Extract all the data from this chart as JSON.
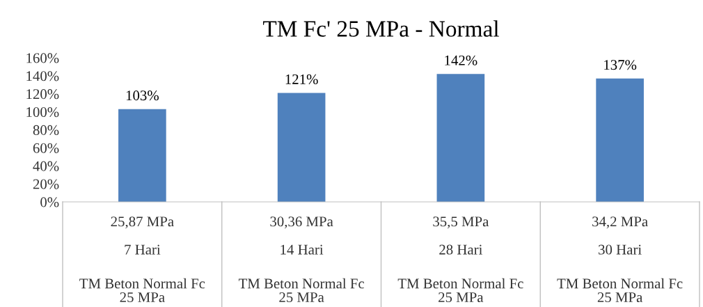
{
  "chart_data": {
    "type": "bar",
    "title": "TM Fc' 25 MPa - Normal",
    "categories": [
      "25,87 MPa\n7 Hari\nTM Beton Normal Fc\n25 MPa",
      "30,36 MPa\n14 Hari\nTM Beton Normal Fc\n25 MPa",
      "35,5 MPa\n28 Hari\nTM Beton Normal Fc\n25 MPa",
      "34,2 MPa\n30 Hari\nTM Beton Normal Fc\n25 MPa"
    ],
    "values": [
      103,
      121,
      142,
      137
    ],
    "value_labels": [
      "103%",
      "121%",
      "142%",
      "137%"
    ],
    "color": "#4f81bd",
    "ylim": [
      0,
      160
    ],
    "yticks": [
      {
        "value": 0,
        "label": "0%"
      },
      {
        "value": 20,
        "label": "20%"
      },
      {
        "value": 40,
        "label": "40%"
      },
      {
        "value": 60,
        "label": "60%"
      },
      {
        "value": 80,
        "label": "80%"
      },
      {
        "value": 100,
        "label": "100%"
      },
      {
        "value": 120,
        "label": "120%"
      },
      {
        "value": 140,
        "label": "140%"
      },
      {
        "value": 160,
        "label": "160%"
      }
    ],
    "grid": false,
    "legend": false
  }
}
